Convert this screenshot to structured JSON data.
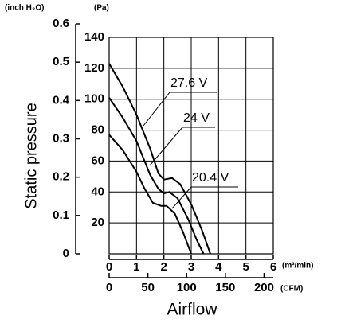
{
  "chart_data": {
    "type": "line",
    "ylabel": "Static pressure",
    "xlabel": "Airflow",
    "y_unit": "(Pa)",
    "y2_unit": "(inch H₂O)",
    "x_unit": "(m³/min)",
    "x2_unit": "(CFM)",
    "xlim": [
      0,
      6
    ],
    "xticks": [
      0,
      1,
      2,
      3,
      4,
      5,
      6
    ],
    "ylim": [
      0,
      140
    ],
    "yticks": [
      20,
      40,
      60,
      80,
      100,
      120,
      140
    ],
    "y2lim": [
      0,
      0.6
    ],
    "y2ticks": [
      0,
      0.1,
      0.2,
      0.3,
      0.4,
      0.5,
      0.6
    ],
    "x2lim": [
      0,
      200
    ],
    "x2ticks": [
      0,
      50,
      100,
      150,
      200
    ],
    "grid": true,
    "series": [
      {
        "name": "27.6 V",
        "color": "#000000",
        "x": [
          0,
          0.5,
          1,
          1.5,
          1.8,
          2.0,
          2.3,
          2.6,
          3.0,
          3.4,
          3.7
        ],
        "values": [
          123,
          108,
          90,
          68,
          52,
          48,
          49,
          45,
          32,
          15,
          0
        ]
      },
      {
        "name": "24 V",
        "color": "#000000",
        "x": [
          0,
          0.5,
          1,
          1.5,
          1.8,
          2.0,
          2.2,
          2.5,
          2.9,
          3.2,
          3.45
        ],
        "values": [
          101,
          88,
          73,
          51,
          42,
          39,
          40,
          36,
          22,
          9,
          0
        ]
      },
      {
        "name": "20.4 V",
        "color": "#000000",
        "x": [
          0,
          0.5,
          1,
          1.3,
          1.6,
          1.9,
          2.1,
          2.4,
          2.7,
          3.0
        ],
        "values": [
          77,
          67,
          53,
          42,
          33,
          31,
          31,
          26,
          14,
          0
        ]
      }
    ]
  }
}
